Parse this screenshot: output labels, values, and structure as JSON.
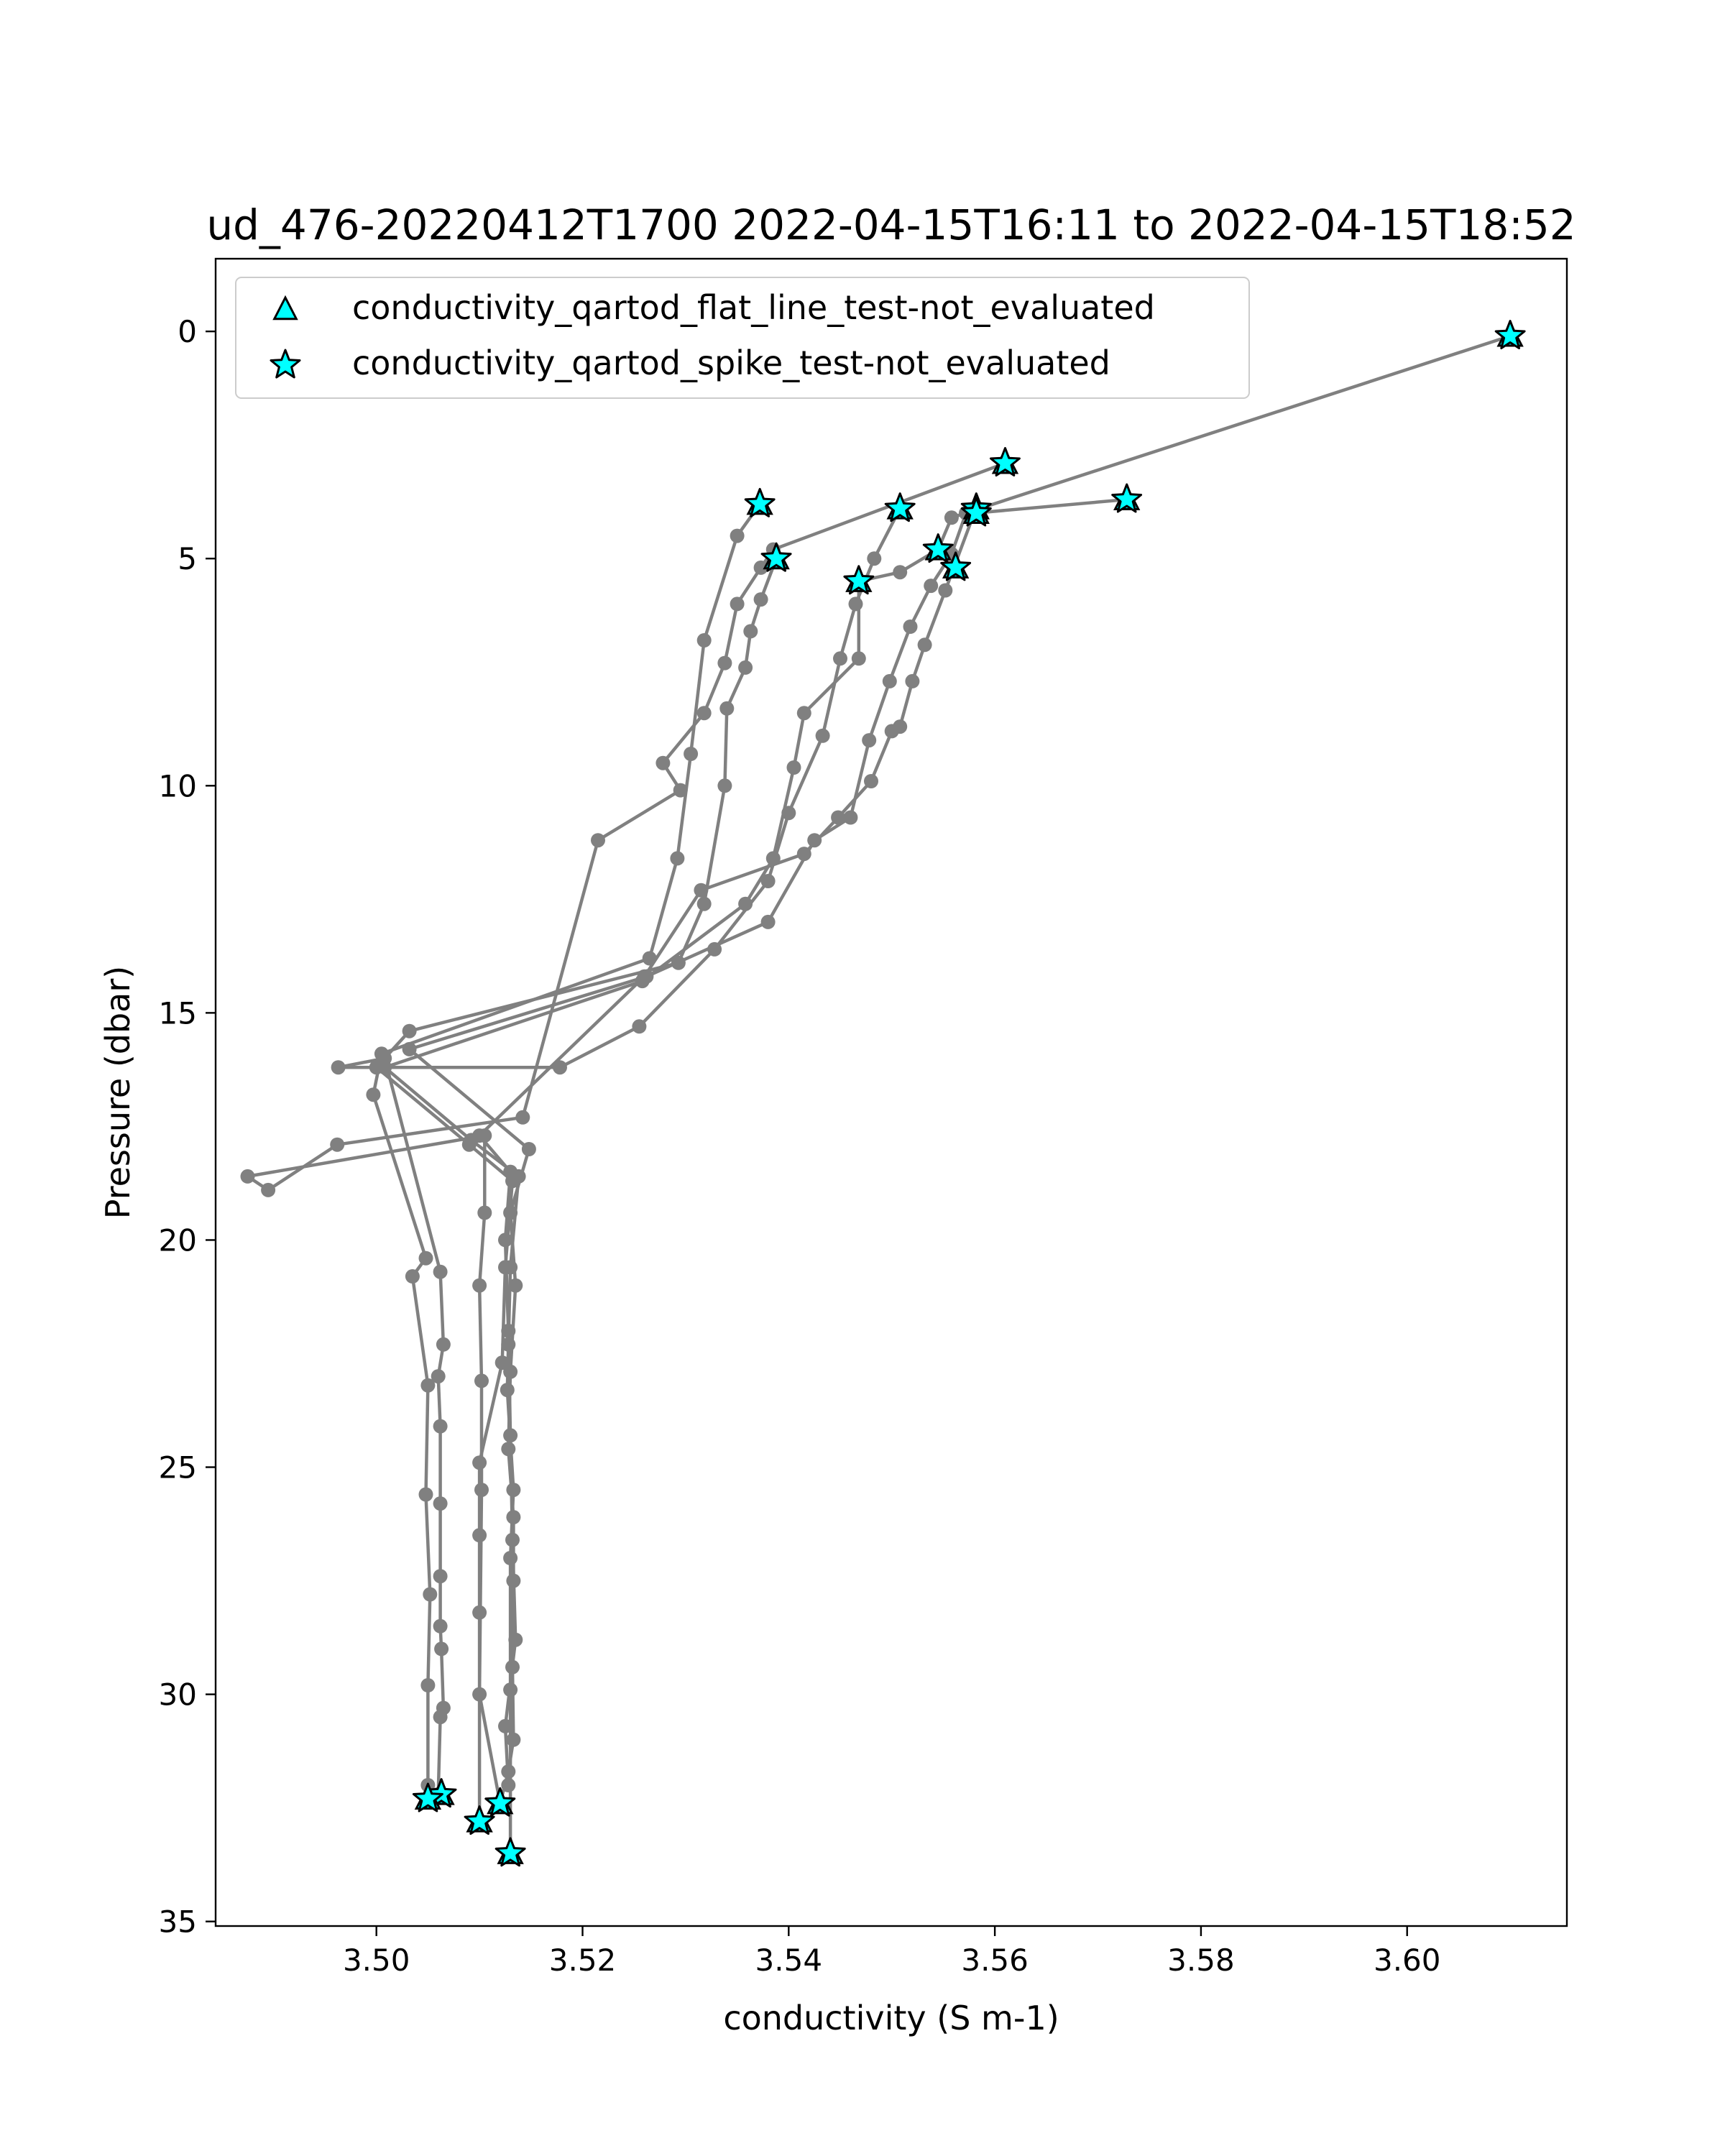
{
  "chart_data": {
    "type": "line",
    "title": "ud_476-20220412T1700 2022-04-15T16:11 to 2022-04-15T18:52",
    "xlabel": "conductivity (S m-1)",
    "ylabel": "Pressure (dbar)",
    "xlim": [
      3.4844,
      3.6155
    ],
    "ylim": [
      35.1,
      -1.6
    ],
    "y_inverted": true,
    "x_ticks": [
      3.5,
      3.52,
      3.54,
      3.56,
      3.58,
      3.6
    ],
    "x_tick_labels": [
      "3.50",
      "3.52",
      "3.54",
      "3.56",
      "3.58",
      "3.60"
    ],
    "y_ticks": [
      0,
      5,
      10,
      15,
      20,
      25,
      30,
      35
    ],
    "y_tick_labels": [
      "0",
      "5",
      "10",
      "15",
      "20",
      "25",
      "30",
      "35"
    ],
    "grid": false,
    "line_color": "#808080",
    "marker_color": "#00ffff",
    "legend": {
      "placement": "upper-left",
      "entries": [
        {
          "label": "conductivity_qartod_flat_line_test-not_evaluated",
          "marker": "triangle",
          "color": "#00ffff"
        },
        {
          "label": "conductivity_qartod_spike_test-not_evaluated",
          "marker": "star",
          "color": "#00ffff"
        }
      ]
    },
    "series": [
      {
        "x": [
          3.5372,
          3.535,
          3.5318,
          3.5305,
          3.5292,
          3.5265,
          3.5005,
          3.4997,
          3.5048,
          3.5035,
          3.505,
          3.5048,
          3.5052,
          3.505,
          3.505,
          3.505
        ],
        "y": [
          3.8,
          4.5,
          6.8,
          9.3,
          11.6,
          13.8,
          15.9,
          16.8,
          20.4,
          20.8,
          23.2,
          25.6,
          27.8,
          29.8,
          32.0,
          32.3
        ]
      },
      {
        "x": [
          3.5388,
          3.5373,
          3.5363,
          3.5358,
          3.534,
          3.5338,
          3.5318,
          3.5293,
          3.5032,
          3.5,
          3.509,
          3.5132,
          3.5125,
          3.5122,
          3.51,
          3.51,
          3.51,
          3.51
        ],
        "y": [
          5.0,
          5.9,
          6.6,
          7.4,
          8.3,
          10.0,
          12.6,
          13.9,
          15.4,
          16.2,
          17.9,
          18.7,
          20.6,
          22.7,
          24.9,
          26.5,
          28.2,
          32.8
        ]
      },
      {
        "x": [
          3.561,
          3.5385,
          3.5373,
          3.535,
          3.5338,
          3.5318,
          3.5278,
          3.5295,
          3.5215,
          3.5142,
          3.4962,
          3.4895,
          3.4875,
          3.5105,
          3.5105,
          3.51,
          3.5102,
          3.5102,
          3.51,
          3.512
        ],
        "y": [
          2.9,
          4.8,
          5.2,
          6.0,
          7.3,
          8.4,
          9.5,
          10.1,
          11.2,
          17.3,
          17.9,
          18.9,
          18.6,
          17.7,
          19.4,
          21.0,
          23.1,
          25.5,
          30.0,
          32.4
        ]
      },
      {
        "x": [
          3.5508,
          3.5483,
          3.5465,
          3.545,
          3.5433,
          3.54,
          3.538,
          3.5328,
          3.5255,
          3.5178,
          3.4963,
          3.5008,
          3.5062,
          3.5065,
          3.506,
          3.5062,
          3.5062,
          3.5062,
          3.5062,
          3.5063,
          3.5065,
          3.5062,
          3.506
        ],
        "y": [
          3.9,
          5.0,
          6.0,
          7.2,
          8.9,
          10.6,
          12.1,
          13.6,
          15.3,
          16.2,
          16.2,
          16.0,
          20.7,
          22.3,
          23.0,
          24.1,
          25.8,
          27.4,
          28.5,
          29.0,
          30.3,
          30.5,
          32.2
        ]
      },
      {
        "x": [
          3.5572,
          3.5558,
          3.5538,
          3.5518,
          3.5498,
          3.5478,
          3.546,
          3.5425,
          3.538,
          3.5262,
          3.5032,
          3.5148,
          3.513,
          3.5135,
          3.513,
          3.5128,
          3.5133,
          3.5133,
          3.5132,
          3.5133,
          3.5128,
          3.512
        ],
        "y": [
          4.0,
          4.9,
          5.6,
          6.5,
          7.7,
          9.0,
          10.7,
          11.2,
          13.0,
          14.2,
          15.8,
          18.0,
          19.4,
          21.0,
          22.9,
          24.6,
          26.1,
          27.5,
          29.4,
          31.0,
          31.7,
          32.4
        ]
      },
      {
        "x": [
          3.5728,
          3.558,
          3.5552,
          3.5532,
          3.552,
          3.5508,
          3.55,
          3.548,
          3.5448,
          3.5415,
          3.5315,
          3.526,
          3.51,
          3.513,
          3.5125,
          3.5128,
          3.513,
          3.5132,
          3.5135,
          3.5125,
          3.5128
        ],
        "y": [
          3.7,
          4.0,
          5.7,
          6.9,
          7.7,
          8.7,
          8.8,
          9.9,
          10.7,
          11.5,
          12.3,
          14.2,
          17.7,
          18.5,
          20.0,
          22.0,
          24.3,
          26.6,
          28.8,
          30.7,
          32.0
        ]
      },
      {
        "x": [
          3.61,
          3.5558,
          3.5545,
          3.5508,
          3.5468,
          3.5468,
          3.5415,
          3.5405,
          3.5385,
          3.5358,
          3.5258,
          3.5008,
          3.5092,
          3.5138,
          3.513,
          3.5128,
          3.5127,
          3.5133,
          3.513,
          3.513,
          3.513
        ],
        "y": [
          0.1,
          4.1,
          4.8,
          5.3,
          5.5,
          7.2,
          8.4,
          9.6,
          11.6,
          12.6,
          14.3,
          16.2,
          17.8,
          18.6,
          20.6,
          22.3,
          23.3,
          25.5,
          27.0,
          29.9,
          33.5
        ]
      }
    ],
    "flagged_points": [
      {
        "x": 3.61,
        "y": 0.1
      },
      {
        "x": 3.561,
        "y": 2.9
      },
      {
        "x": 3.5372,
        "y": 3.8
      },
      {
        "x": 3.5728,
        "y": 3.7
      },
      {
        "x": 3.5508,
        "y": 3.9
      },
      {
        "x": 3.5582,
        "y": 3.9
      },
      {
        "x": 3.5582,
        "y": 4.0
      },
      {
        "x": 3.5388,
        "y": 5.0
      },
      {
        "x": 3.5545,
        "y": 4.8
      },
      {
        "x": 3.5562,
        "y": 5.2
      },
      {
        "x": 3.5468,
        "y": 5.5
      },
      {
        "x": 3.5063,
        "y": 32.2
      },
      {
        "x": 3.505,
        "y": 32.3
      },
      {
        "x": 3.512,
        "y": 32.4
      },
      {
        "x": 3.51,
        "y": 32.8
      },
      {
        "x": 3.513,
        "y": 33.5
      }
    ]
  }
}
